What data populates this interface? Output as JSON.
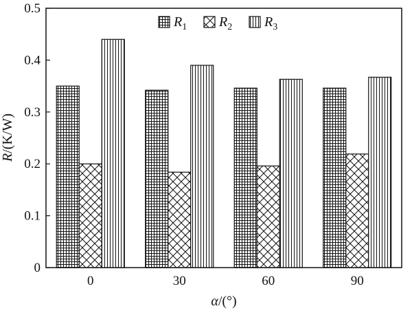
{
  "chart_data": {
    "type": "bar",
    "categories": [
      "0",
      "30",
      "60",
      "90"
    ],
    "series": [
      {
        "name": "R1",
        "label_base": "R",
        "label_sub": "1",
        "pattern": "grid",
        "values": [
          0.35,
          0.342,
          0.346,
          0.346
        ]
      },
      {
        "name": "R2",
        "label_base": "R",
        "label_sub": "2",
        "pattern": "crosshatch",
        "values": [
          0.2,
          0.184,
          0.196,
          0.219
        ]
      },
      {
        "name": "R3",
        "label_base": "R",
        "label_sub": "3",
        "pattern": "vertical",
        "values": [
          0.44,
          0.39,
          0.363,
          0.367
        ]
      }
    ],
    "xlabel": {
      "symbol": "α",
      "rest": "/(°)"
    },
    "ylabel": {
      "symbol": "R",
      "rest": "/(K/W)"
    },
    "ylim": [
      0,
      0.5
    ],
    "yticks": [
      "0",
      "0.1",
      "0.2",
      "0.3",
      "0.4",
      "0.5"
    ],
    "legend_position": "top-center",
    "grid": false
  }
}
